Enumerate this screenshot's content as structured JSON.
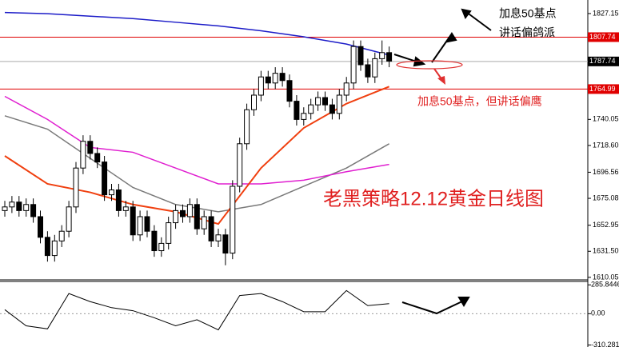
{
  "chart_data": [
    {
      "type": "candlestick",
      "title": "老黑策略12.12黄金日线图",
      "annotations": [
        "加息50基点",
        "讲话偏鸽派",
        "加息50基点，但讲话偏鹰"
      ],
      "open": [
        1665,
        1668,
        1672,
        1665,
        1670,
        1660,
        1643,
        1628,
        1640,
        1648,
        1668,
        1700,
        1722,
        1712,
        1705,
        1678,
        1682,
        1665,
        1668,
        1645,
        1660,
        1648,
        1632,
        1638,
        1655,
        1665,
        1660,
        1670,
        1650,
        1660,
        1640,
        1645,
        1630,
        1685,
        1720,
        1748,
        1760,
        1775,
        1770,
        1778,
        1772,
        1755,
        1740,
        1745,
        1752,
        1758,
        1752,
        1745,
        1760,
        1770,
        1800,
        1785,
        1775,
        1790,
        1795
      ],
      "high": [
        1673,
        1677,
        1677,
        1675,
        1675,
        1665,
        1648,
        1645,
        1653,
        1673,
        1705,
        1727,
        1727,
        1717,
        1710,
        1687,
        1687,
        1673,
        1673,
        1665,
        1665,
        1653,
        1643,
        1660,
        1670,
        1670,
        1675,
        1675,
        1665,
        1665,
        1650,
        1650,
        1690,
        1725,
        1753,
        1765,
        1780,
        1780,
        1783,
        1783,
        1777,
        1760,
        1750,
        1757,
        1763,
        1763,
        1757,
        1765,
        1775,
        1805,
        1805,
        1790,
        1795,
        1805,
        1800
      ],
      "low": [
        1660,
        1663,
        1660,
        1660,
        1655,
        1638,
        1623,
        1623,
        1635,
        1643,
        1663,
        1695,
        1707,
        1700,
        1673,
        1673,
        1660,
        1660,
        1640,
        1640,
        1643,
        1627,
        1627,
        1633,
        1650,
        1655,
        1655,
        1645,
        1645,
        1635,
        1635,
        1620,
        1625,
        1680,
        1715,
        1743,
        1755,
        1765,
        1765,
        1767,
        1750,
        1735,
        1735,
        1740,
        1747,
        1747,
        1740,
        1740,
        1755,
        1765,
        1780,
        1770,
        1770,
        1785,
        1783
      ],
      "close": [
        1668,
        1672,
        1665,
        1670,
        1660,
        1643,
        1628,
        1640,
        1648,
        1668,
        1700,
        1722,
        1712,
        1705,
        1678,
        1682,
        1665,
        1668,
        1645,
        1660,
        1648,
        1632,
        1638,
        1655,
        1665,
        1660,
        1670,
        1650,
        1660,
        1640,
        1645,
        1630,
        1685,
        1720,
        1748,
        1760,
        1775,
        1770,
        1778,
        1772,
        1755,
        1740,
        1745,
        1752,
        1758,
        1752,
        1745,
        1760,
        1770,
        1800,
        1785,
        1775,
        1790,
        1795,
        1788
      ],
      "series": [
        {
          "color": "#1c1cc8",
          "x": [
            0,
            6,
            12,
            18,
            24,
            30,
            36,
            42,
            48,
            54
          ],
          "values": [
            1828,
            1827,
            1825,
            1823,
            1820,
            1817,
            1813,
            1808,
            1802,
            1793
          ]
        },
        {
          "color": "#7a7a7a",
          "x": [
            0,
            6,
            12,
            18,
            24,
            30,
            36,
            42,
            48,
            54
          ],
          "values": [
            1743,
            1732,
            1708,
            1684,
            1670,
            1664,
            1670,
            1685,
            1700,
            1720
          ]
        },
        {
          "color": "#e020d0",
          "x": [
            0,
            6,
            12,
            18,
            24,
            30,
            36,
            42,
            48,
            54
          ],
          "values": [
            1759,
            1740,
            1717,
            1713,
            1700,
            1687,
            1687,
            1690,
            1697,
            1703
          ]
        },
        {
          "color": "#f04010",
          "x": [
            0,
            6,
            12,
            18,
            24,
            30,
            36,
            42,
            48,
            54
          ],
          "values": [
            1710,
            1687,
            1680,
            1670,
            1664,
            1654,
            1700,
            1733,
            1753,
            1767
          ]
        }
      ],
      "levels": [
        {
          "value": 1807.74,
          "color": "#e00000"
        },
        {
          "value": 1787.74,
          "color": "#000000"
        },
        {
          "value": 1764.99,
          "color": "#e00000"
        }
      ],
      "ylim": [
        1608,
        1838.3
      ],
      "yticks": [
        1827.15,
        1740.05,
        {
          "value": 1718.6,
          "label": "1718.60"
        },
        1696.56,
        1675.08,
        1652.95,
        {
          "value": 1631.5,
          "label": "1631.50"
        },
        1610.05
      ]
    },
    {
      "type": "line",
      "x": [
        0,
        3,
        6,
        9,
        12,
        15,
        18,
        21,
        24,
        27,
        30,
        33,
        36,
        39,
        42,
        45,
        48,
        51,
        54
      ],
      "values": [
        40,
        -120,
        -150,
        200,
        120,
        60,
        30,
        -40,
        -120,
        -60,
        -160,
        180,
        200,
        120,
        20,
        20,
        230,
        80,
        100
      ],
      "color": "#000000",
      "ylim": [
        -330,
        320
      ],
      "yticks": [
        285.8446,
        {
          "value": 0,
          "label": "0.00"
        },
        -310.281
      ]
    }
  ]
}
